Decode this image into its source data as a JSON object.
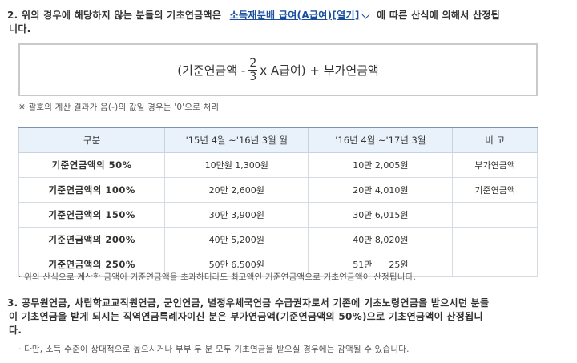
{
  "item2": {
    "text_before": "2. 위의 경우에 해당하지 않는 분들의 기초연금액은",
    "link_text": "소득재분배 급여(A급여)[열기]",
    "text_after_line1": "에 따른 산식에 의해서 산정됩",
    "text_line2": "니다."
  },
  "formula": {
    "prefix": "(기준연금액 -",
    "numerator": "2",
    "denominator": "3",
    "suffix": "x A급여) + 부가연금액"
  },
  "formula_note": "※ 괄호의 계산 결과가 음(-)의 값일 경우는 '0'으로 처리",
  "table": {
    "headers": [
      "구분",
      "'15년 4월 ~'16년 3월 월",
      "'16년 4월 ~'17년 3월",
      "비 고"
    ],
    "rows": [
      {
        "label": "기준연금액의 50%",
        "p1": "10만원 1,300원",
        "p2": "10만 2,005원",
        "note": "부가연금액"
      },
      {
        "label": "기준연금액의 100%",
        "p1": "20만 2,600원",
        "p2": "20만 4,010원",
        "note": "기준연금액"
      },
      {
        "label": "기준연금액의 150%",
        "p1": "30만 3,900원",
        "p2": "30만 6,015원",
        "note": ""
      },
      {
        "label": "기준연금액의 200%",
        "p1": "40만 5,200원",
        "p2": "40만 8,020원",
        "note": ""
      },
      {
        "label": "기준연금액의 250%",
        "p1": "50만 6,500원",
        "p2": "51만      25원",
        "note": ""
      }
    ]
  },
  "table_note": "· 위의 산식으로 계산한 금액이 기준연금액을 초과하더라도 최고액인 기준연금액으로 기초연금액이 산정됩니다.",
  "item3": {
    "line1": "3. 공무원연금, 사립학교교직원연금, 군인연금, 별정우체국연금 수급권자로서 기존에 기초노령연금을 받으시던 분들",
    "line2": "이 기초연금을 받게 되시는 직역연금특례자이신 분은 부가연금액(기준연금액의 50%)으로 기초연금액이 산정됩니",
    "line3": "다."
  },
  "item3_note": "· 다만, 소득 수준이 상대적으로 높으시거나 부부 두 분 모두 기초연금을 받으실 경우에는 감액될 수 있습니다."
}
